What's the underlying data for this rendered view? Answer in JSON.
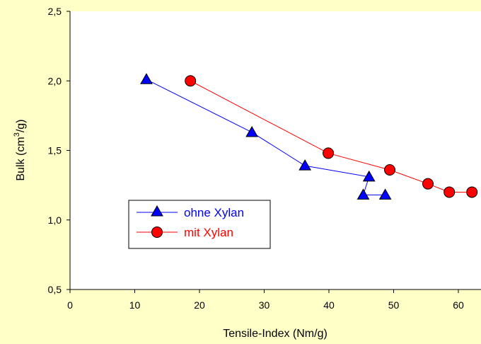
{
  "chart_data": {
    "type": "line",
    "title": "",
    "xlabel": "Tensile-Index (Nm/g)",
    "ylabel_main": "Bulk (cm",
    "ylabel_sup": "3",
    "ylabel_end": "/g)",
    "xlim": [
      0,
      64
    ],
    "ylim": [
      0.5,
      2.5
    ],
    "xticks": [
      0,
      10,
      20,
      30,
      40,
      50,
      60
    ],
    "yticks": [
      0.5,
      1.0,
      1.5,
      2.0,
      2.5
    ],
    "xtick_labels": [
      "0",
      "10",
      "20",
      "30",
      "40",
      "50",
      "60"
    ],
    "ytick_labels": [
      "0,5",
      "1,0",
      "1,5",
      "2,0",
      "2,5"
    ],
    "grid": false,
    "legend_position": "lower-left",
    "series": [
      {
        "name": "ohne Xylan",
        "color": "#0000ff",
        "marker": "triangle",
        "x": [
          11.8,
          28.1,
          36.3,
          46.2,
          45.3,
          48.7
        ],
        "y": [
          2.01,
          1.63,
          1.39,
          1.31,
          1.18,
          1.18
        ]
      },
      {
        "name": "mit Xylan",
        "color": "#ff0000",
        "marker": "circle",
        "x": [
          18.6,
          39.9,
          49.4,
          55.3,
          58.6,
          62.1
        ],
        "y": [
          2.0,
          1.48,
          1.36,
          1.26,
          1.2,
          1.2
        ]
      }
    ]
  }
}
